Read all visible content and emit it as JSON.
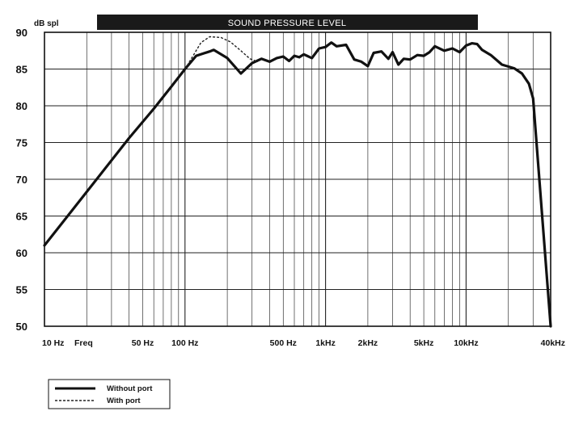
{
  "chart_data": {
    "type": "line",
    "title": "SOUND PRESSURE LEVEL",
    "ylabel": "dB  spl",
    "xlabel": "Freq",
    "x_scale": "log",
    "xlim": [
      10,
      40000
    ],
    "ylim": [
      50,
      90
    ],
    "grid": true,
    "legend_position": "bottom-left",
    "y_ticks": [
      50,
      55,
      60,
      65,
      70,
      75,
      80,
      85,
      90
    ],
    "x_ticks": [
      {
        "value": 10,
        "label": "10 Hz"
      },
      {
        "value": 50,
        "label": "50 Hz"
      },
      {
        "value": 100,
        "label": "100 Hz"
      },
      {
        "value": 500,
        "label": "500 Hz"
      },
      {
        "value": 1000,
        "label": "1kHz"
      },
      {
        "value": 2000,
        "label": "2kHz"
      },
      {
        "value": 5000,
        "label": "5kHz"
      },
      {
        "value": 10000,
        "label": "10kHz"
      },
      {
        "value": 40000,
        "label": "40kHz"
      }
    ],
    "series": [
      {
        "name": "Without port",
        "style": "solid",
        "points": [
          [
            10,
            61
          ],
          [
            20,
            68.3
          ],
          [
            40,
            75.6
          ],
          [
            60,
            79.6
          ],
          [
            80,
            82.6
          ],
          [
            100,
            85
          ],
          [
            120,
            86.8
          ],
          [
            150,
            87.4
          ],
          [
            160,
            87.6
          ],
          [
            200,
            86.5
          ],
          [
            250,
            84.4
          ],
          [
            300,
            85.8
          ],
          [
            350,
            86.4
          ],
          [
            400,
            86.0
          ],
          [
            450,
            86.5
          ],
          [
            500,
            86.7
          ],
          [
            550,
            86.1
          ],
          [
            600,
            86.8
          ],
          [
            650,
            86.6
          ],
          [
            700,
            87.0
          ],
          [
            800,
            86.5
          ],
          [
            900,
            87.8
          ],
          [
            1000,
            88.0
          ],
          [
            1100,
            88.6
          ],
          [
            1200,
            88.1
          ],
          [
            1400,
            88.3
          ],
          [
            1600,
            86.3
          ],
          [
            1800,
            86.0
          ],
          [
            2000,
            85.4
          ],
          [
            2200,
            87.2
          ],
          [
            2500,
            87.4
          ],
          [
            2800,
            86.4
          ],
          [
            3000,
            87.3
          ],
          [
            3300,
            85.6
          ],
          [
            3600,
            86.4
          ],
          [
            4000,
            86.3
          ],
          [
            4500,
            86.9
          ],
          [
            5000,
            86.8
          ],
          [
            5500,
            87.3
          ],
          [
            6000,
            88.1
          ],
          [
            7000,
            87.5
          ],
          [
            8000,
            87.8
          ],
          [
            9000,
            87.3
          ],
          [
            10000,
            88.2
          ],
          [
            11000,
            88.5
          ],
          [
            12000,
            88.4
          ],
          [
            13000,
            87.6
          ],
          [
            15000,
            86.9
          ],
          [
            18000,
            85.6
          ],
          [
            22000,
            85.1
          ],
          [
            25000,
            84.4
          ],
          [
            28000,
            83.0
          ],
          [
            30000,
            81.0
          ],
          [
            40000,
            50
          ]
        ]
      },
      {
        "name": "With port",
        "style": "dashed",
        "points": [
          [
            100,
            85
          ],
          [
            115,
            86.9
          ],
          [
            130,
            88.6
          ],
          [
            150,
            89.4
          ],
          [
            180,
            89.3
          ],
          [
            210,
            88.7
          ],
          [
            250,
            87.5
          ],
          [
            290,
            86.4
          ],
          [
            330,
            86.0
          ]
        ]
      }
    ]
  }
}
